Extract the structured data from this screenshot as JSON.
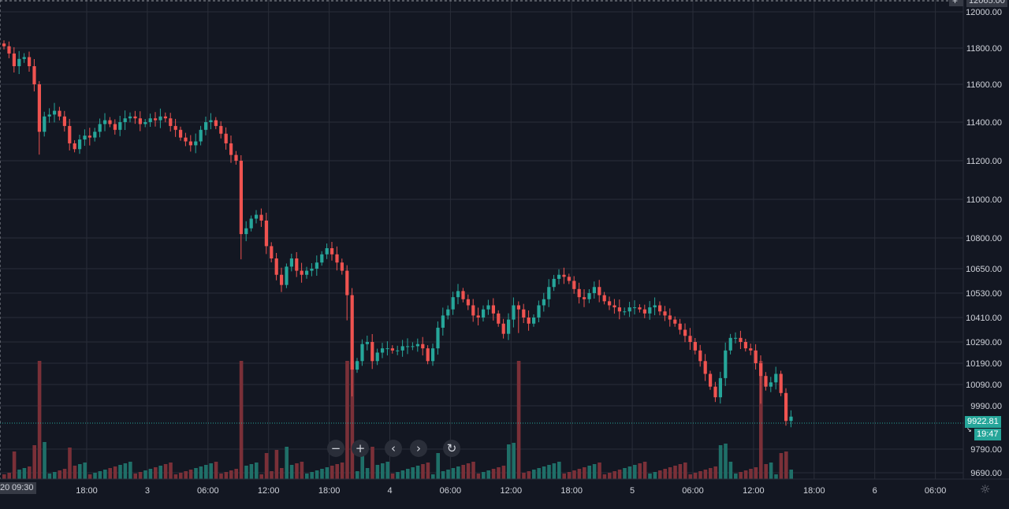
{
  "chart_data": {
    "type": "candlestick",
    "price_axis_labels": [
      "12000.00",
      "11800.00",
      "11600.00",
      "11400.00",
      "11200.00",
      "11000.00",
      "10800.00",
      "10650.00",
      "10530.00",
      "10410.00",
      "10290.00",
      "10190.00",
      "10090.00",
      "9990.00",
      "9790.00",
      "9690.00"
    ],
    "top_partial_label": "12065.00",
    "time_axis_labels": [
      "18:00",
      "3",
      "06:00",
      "12:00",
      "18:00",
      "4",
      "06:00",
      "12:00",
      "18:00",
      "5",
      "06:00",
      "12:00",
      "18:00",
      "6",
      "06:00"
    ],
    "crosshair_time_label": "09:30",
    "crosshair_date_fragment": "20",
    "last_price": "9922.81",
    "countdown": "19:47",
    "close_series": [
      11810,
      11770,
      11700,
      11740,
      11750,
      11700,
      11600,
      11350,
      11430,
      11440,
      11460,
      11430,
      11380,
      11290,
      11260,
      11310,
      11330,
      11320,
      11350,
      11390,
      11410,
      11390,
      11360,
      11400,
      11420,
      11430,
      11420,
      11390,
      11400,
      11420,
      11410,
      11430,
      11420,
      11380,
      11360,
      11320,
      11300,
      11280,
      11300,
      11360,
      11400,
      11410,
      11380,
      11340,
      11290,
      11230,
      11200,
      10820,
      10850,
      10900,
      10920,
      10890,
      10760,
      10700,
      10620,
      10570,
      10660,
      10700,
      10640,
      10620,
      10640,
      10650,
      10680,
      10720,
      10750,
      10720,
      10680,
      10640,
      10520,
      10160,
      10200,
      10280,
      10290,
      10200,
      10240,
      10260,
      10260,
      10250,
      10250,
      10270,
      10270,
      10270,
      10280,
      10260,
      10200,
      10260,
      10360,
      10420,
      10450,
      10510,
      10540,
      10500,
      10470,
      10420,
      10410,
      10450,
      10470,
      10430,
      10380,
      10330,
      10400,
      10470,
      10450,
      10410,
      10380,
      10410,
      10470,
      10500,
      10560,
      10600,
      10620,
      10610,
      10590,
      10550,
      10510,
      10500,
      10530,
      10560,
      10520,
      10490,
      10470,
      10460,
      10440,
      10440,
      10460,
      10460,
      10450,
      10430,
      10460,
      10470,
      10440,
      10420,
      10400,
      10380,
      10350,
      10320,
      10290,
      10250,
      10200,
      10140,
      10080,
      10030,
      10120,
      10250,
      10310,
      10310,
      10290,
      10260,
      10250,
      10190,
      10130,
      10080,
      10100,
      10140,
      10050,
      9920,
      9940
    ]
  }
}
